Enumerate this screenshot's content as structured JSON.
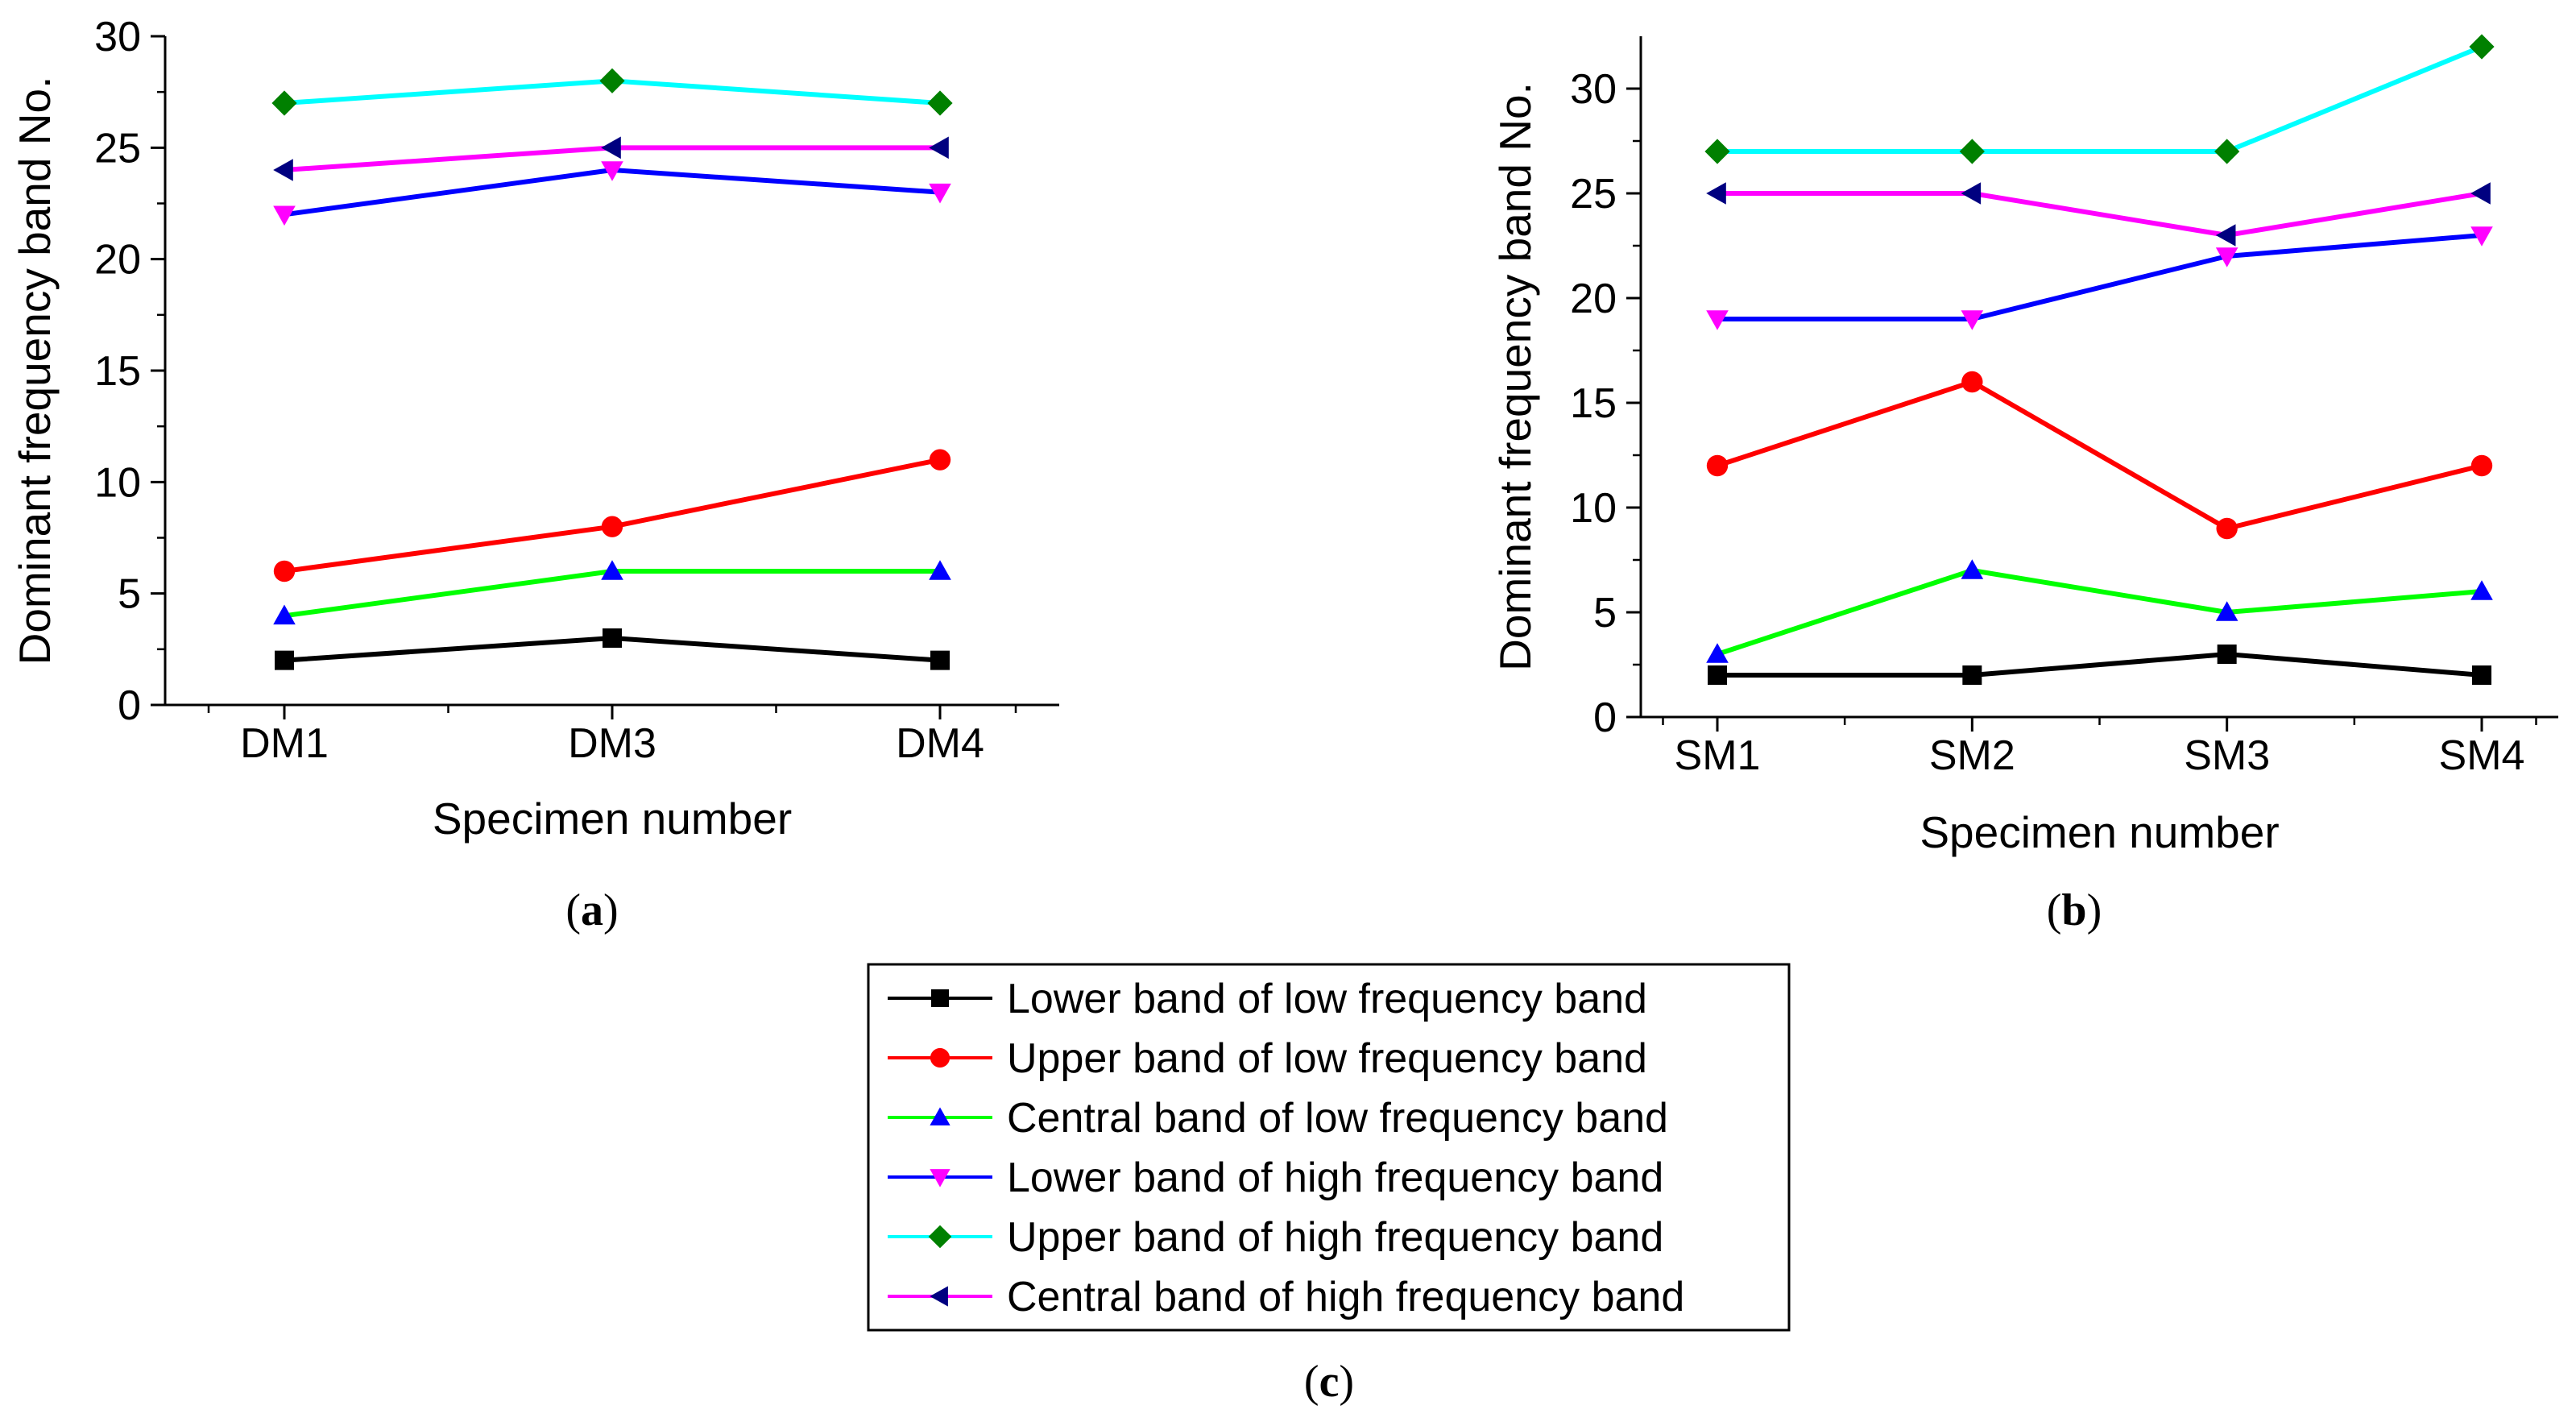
{
  "chart_data": [
    {
      "id": "a",
      "type": "line",
      "categories": [
        "DM1",
        "DM3",
        "DM4"
      ],
      "xlabel": "Specimen number",
      "ylabel": "Dominant frequency band No.",
      "ylim": [
        0,
        30
      ],
      "yticks": [
        0,
        5,
        10,
        15,
        20,
        25,
        30
      ],
      "caption_letter": "a",
      "series": [
        {
          "name": "Lower band of low frequency band",
          "values": [
            2,
            3,
            2
          ]
        },
        {
          "name": "Upper band of low frequency band",
          "values": [
            6,
            8,
            11
          ]
        },
        {
          "name": "Central band of low frequency band",
          "values": [
            4,
            6,
            6
          ]
        },
        {
          "name": "Lower band of high frequency band",
          "values": [
            22,
            24,
            23
          ]
        },
        {
          "name": "Upper band of high frequency band",
          "values": [
            27,
            28,
            27
          ]
        },
        {
          "name": "Central band of high frequency band",
          "values": [
            24,
            25,
            25
          ]
        }
      ]
    },
    {
      "id": "b",
      "type": "line",
      "categories": [
        "SM1",
        "SM2",
        "SM3",
        "SM4"
      ],
      "xlabel": "Specimen number",
      "ylabel": "Dominant frequency band No.",
      "ylim": [
        0,
        32.5
      ],
      "yticks": [
        0,
        5,
        10,
        15,
        20,
        25,
        30
      ],
      "caption_letter": "b",
      "series": [
        {
          "name": "Lower band of low frequency band",
          "values": [
            2,
            2,
            3,
            2
          ]
        },
        {
          "name": "Upper band of low frequency band",
          "values": [
            12,
            16,
            9,
            12
          ]
        },
        {
          "name": "Central band of low frequency band",
          "values": [
            3,
            7,
            5,
            6
          ]
        },
        {
          "name": "Lower band of high frequency band",
          "values": [
            19,
            19,
            22,
            23
          ]
        },
        {
          "name": "Upper band of high frequency band",
          "values": [
            27,
            27,
            27,
            32
          ]
        },
        {
          "name": "Central band of high frequency band",
          "values": [
            25,
            25,
            23,
            25
          ]
        }
      ]
    }
  ],
  "legend": {
    "caption_letter": "c",
    "items": [
      {
        "label": "Lower band of low frequency band",
        "line_color": "#000000",
        "marker": "square",
        "marker_color": "#000000"
      },
      {
        "label": "Upper band of low frequency band",
        "line_color": "#ff0000",
        "marker": "circle",
        "marker_color": "#ff0000"
      },
      {
        "label": "Central band of low frequency band",
        "line_color": "#00ff00",
        "marker": "triangle-up",
        "marker_color": "#0000ff"
      },
      {
        "label": "Lower band of high frequency band",
        "line_color": "#0000ff",
        "marker": "triangle-down",
        "marker_color": "#ff00ff"
      },
      {
        "label": "Upper band of high frequency band",
        "line_color": "#00ffff",
        "marker": "diamond",
        "marker_color": "#008000"
      },
      {
        "label": "Central band of high frequency band",
        "line_color": "#ff00ff",
        "marker": "triangle-left",
        "marker_color": "#000080"
      }
    ]
  }
}
